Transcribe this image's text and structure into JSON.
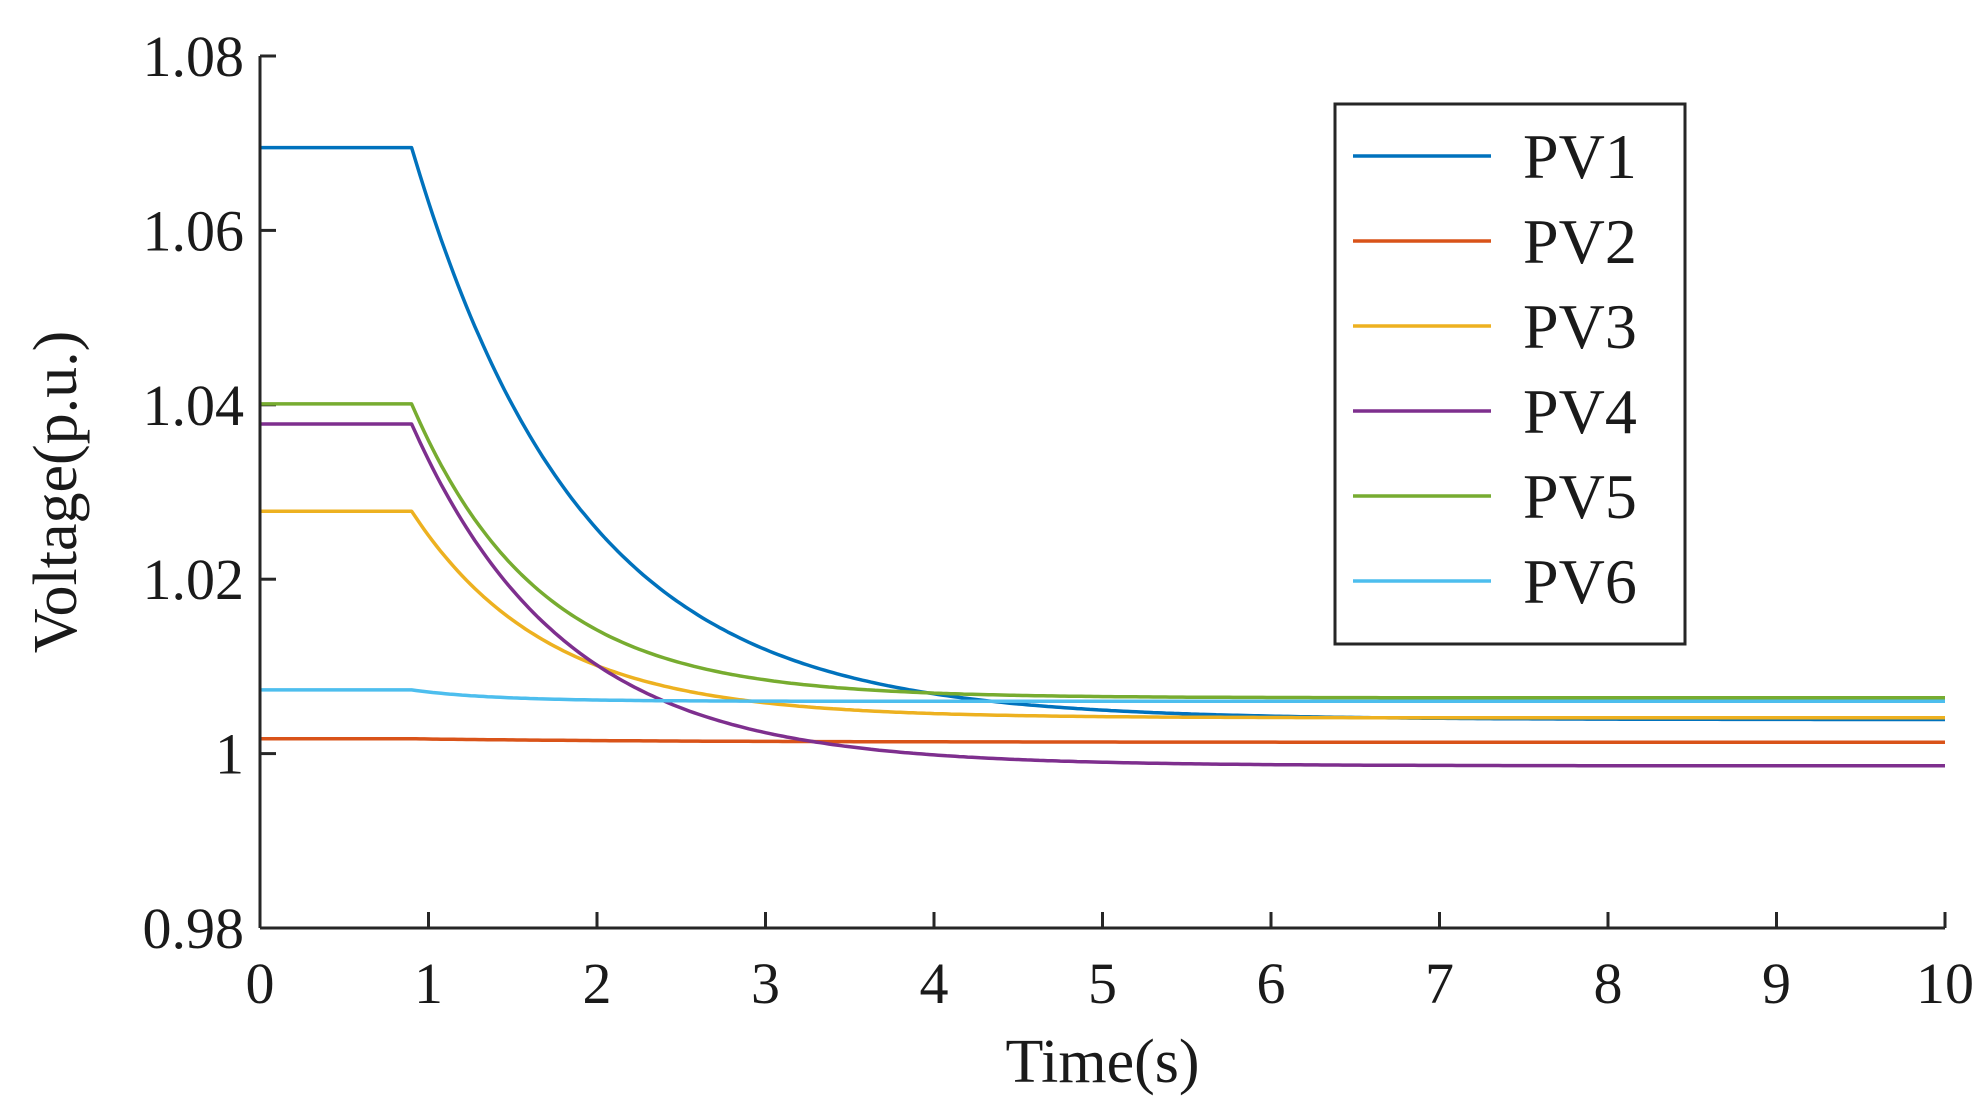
{
  "chart_data": {
    "type": "line",
    "title": "",
    "xlabel": "Time(s)",
    "ylabel": "Voltage(p.u.)",
    "xlim": [
      0,
      10
    ],
    "ylim": [
      0.98,
      1.08
    ],
    "xticks": [
      0,
      1,
      2,
      3,
      4,
      5,
      6,
      7,
      8,
      9,
      10
    ],
    "yticks": [
      0.98,
      1,
      1.02,
      1.04,
      1.06,
      1.08
    ],
    "xtick_labels": [
      "0",
      "1",
      "2",
      "3",
      "4",
      "5",
      "6",
      "7",
      "8",
      "9",
      "10"
    ],
    "ytick_labels": [
      "0.98",
      "1",
      "1.02",
      "1.04",
      "1.06",
      "1.08"
    ],
    "grid": false,
    "legend_position": "top-right",
    "series": [
      {
        "name": "PV1",
        "color": "#0072BD",
        "step_time": 0.9,
        "initial": 1.0695,
        "final": 1.0039,
        "tau": 1.0
      },
      {
        "name": "PV2",
        "color": "#D95319",
        "step_time": 0.9,
        "initial": 1.0017,
        "final": 1.0013,
        "tau": 1.5
      },
      {
        "name": "PV3",
        "color": "#EDB120",
        "step_time": 0.9,
        "initial": 1.0278,
        "final": 1.0041,
        "tau": 0.8
      },
      {
        "name": "PV4",
        "color": "#7E2F8E",
        "step_time": 0.9,
        "initial": 1.0378,
        "final": 0.9986,
        "tau": 0.9
      },
      {
        "name": "PV5",
        "color": "#77AC30",
        "step_time": 0.9,
        "initial": 1.0401,
        "final": 1.0064,
        "tau": 0.75
      },
      {
        "name": "PV6",
        "color": "#4DBEEE",
        "step_time": 0.9,
        "initial": 1.0073,
        "final": 1.006,
        "tau": 0.5
      }
    ]
  }
}
